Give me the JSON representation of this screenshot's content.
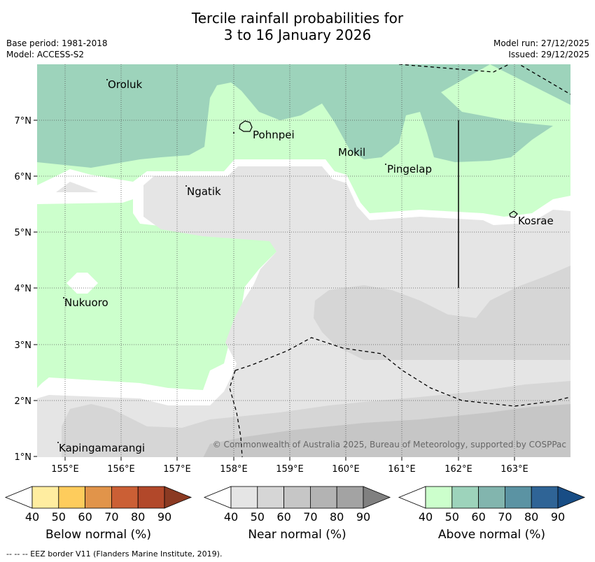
{
  "title_line1": "Tercile rainfall probabilities for",
  "title_line2": "3 to 16 January 2026",
  "meta_left": [
    "Base period: 1981-2018",
    "Model: ACCESS-S2"
  ],
  "meta_right": [
    "Model run: 27/12/2025",
    "Issued: 29/12/2025"
  ],
  "copyright": "© Commonwealth of Australia 2025, Bureau of Meteorology, supported by COSPPac",
  "lon_labels": [
    "155°E",
    "156°E",
    "157°E",
    "158°E",
    "159°E",
    "160°E",
    "161°E",
    "162°E",
    "163°E"
  ],
  "lat_labels": [
    "7°N",
    "6°N",
    "5°N",
    "4°N",
    "3°N",
    "2°N",
    "1°N"
  ],
  "places": [
    {
      "name": "Oroluk"
    },
    {
      "name": "Pohnpei"
    },
    {
      "name": "Mokil"
    },
    {
      "name": "Pingelap"
    },
    {
      "name": "Ngatik"
    },
    {
      "name": "Kosrae"
    },
    {
      "name": "Nukuoro"
    },
    {
      "name": "Kapingamarangi"
    }
  ],
  "colorbars": [
    {
      "label": "Below normal (%)",
      "ticks": [
        "40",
        "50",
        "60",
        "70",
        "80",
        "90"
      ],
      "colors": [
        "#ffeda0",
        "#fecc5c",
        "#e1944a",
        "#cb5f35",
        "#b2482a",
        "#8b3a22"
      ]
    },
    {
      "label": "Near normal (%)",
      "ticks": [
        "40",
        "50",
        "60",
        "70",
        "80",
        "90"
      ],
      "colors": [
        "#e5e5e5",
        "#d6d6d6",
        "#c6c6c6",
        "#b3b3b3",
        "#a3a3a3",
        "#808080"
      ]
    },
    {
      "label": "Above normal (%)",
      "ticks": [
        "40",
        "50",
        "60",
        "70",
        "80",
        "90"
      ],
      "colors": [
        "#ccffcc",
        "#9dd3bb",
        "#82b5ae",
        "#5b93a3",
        "#2f6496",
        "#184d85"
      ]
    }
  ],
  "map_colors": {
    "green": "#ccffcc",
    "teal": "#9dd3bb",
    "grey1": "#e5e5e5",
    "grey2": "#d6d6d6",
    "grey3": "#c6c6c6",
    "white": "#ffffff"
  },
  "footnote": "-- -- -- EEZ border V11 (Flanders Marine Institute, 2019)."
}
